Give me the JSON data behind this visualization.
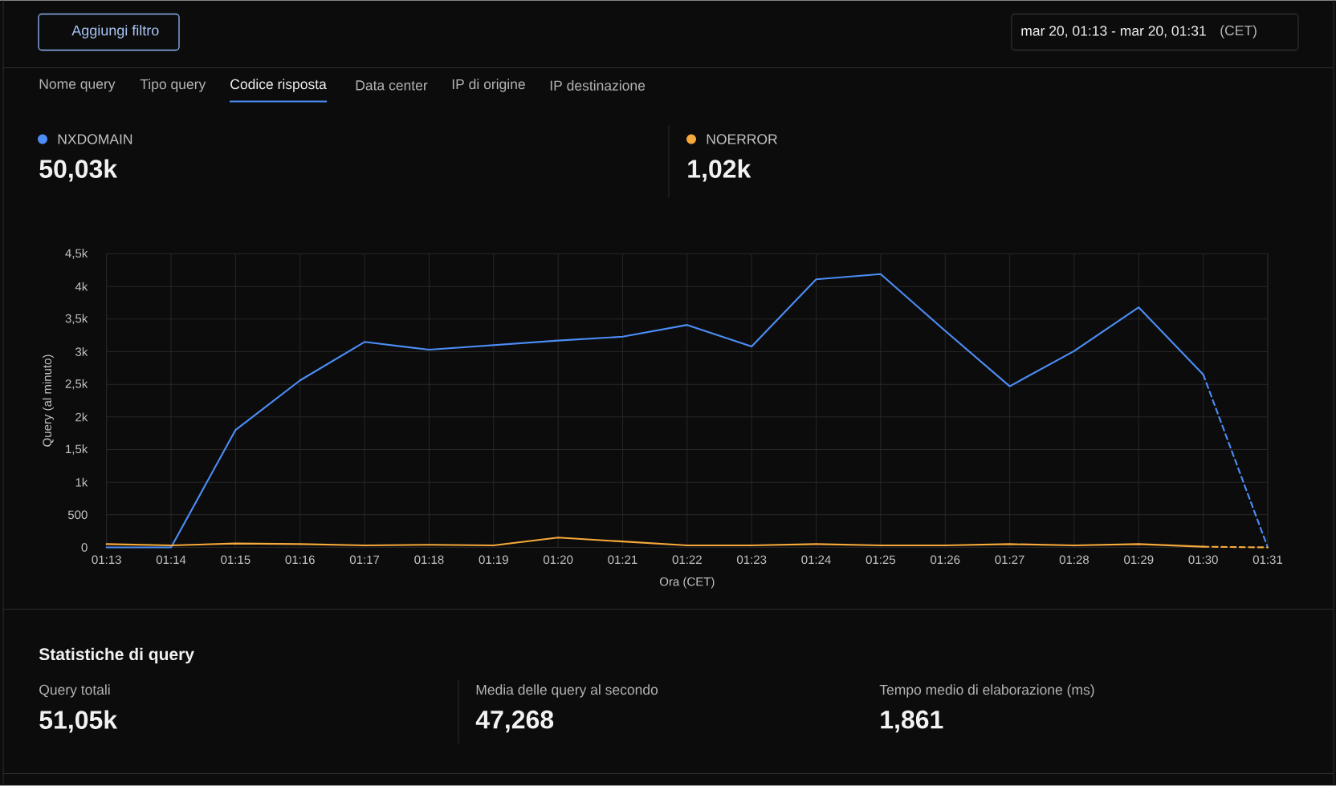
{
  "chart_data": {
    "type": "line",
    "xlabel": "Ora (CET)",
    "ylabel": "Query (al minuto)",
    "categories": [
      "01:13",
      "01:14",
      "01:15",
      "01:16",
      "01:17",
      "01:18",
      "01:19",
      "01:20",
      "01:21",
      "01:22",
      "01:23",
      "01:24",
      "01:25",
      "01:26",
      "01:27",
      "01:28",
      "01:29",
      "01:30",
      "01:31"
    ],
    "series": [
      {
        "name": "NXDOMAIN",
        "color": "#4c8df6",
        "line_style": "solid",
        "values": [
          0,
          0,
          1800,
          2560,
          3150,
          3030,
          3100,
          3170,
          3230,
          3410,
          3080,
          4110,
          4190,
          3320,
          2470,
          3010,
          3680,
          2650,
          null
        ]
      },
      {
        "name": "NOERROR",
        "color": "#f6a93b",
        "line_style": "solid",
        "values": [
          50,
          30,
          60,
          50,
          30,
          40,
          30,
          150,
          90,
          30,
          30,
          50,
          30,
          30,
          50,
          30,
          50,
          10,
          null
        ]
      },
      {
        "color": "#4c8df6",
        "line_style": "dashed",
        "x": [
          "01:30",
          "01:31"
        ],
        "values": [
          2650,
          0
        ]
      },
      {
        "color": "#f6a93b",
        "line_style": "dashed",
        "x": [
          "01:30",
          "01:31"
        ],
        "values": [
          10,
          0
        ]
      }
    ],
    "ylim": [
      0,
      4500
    ],
    "yticks": [
      0,
      500,
      {
        "value": 1000,
        "label": "1k"
      },
      {
        "value": 1500,
        "label": "1,5k"
      },
      {
        "value": 2000,
        "label": "2k"
      },
      {
        "value": 2500,
        "label": "2,5k"
      },
      {
        "value": 3000,
        "label": "3k"
      },
      {
        "value": 3500,
        "label": "3,5k"
      },
      {
        "value": 4000,
        "label": "4k"
      },
      {
        "value": 4500,
        "label": "4,5k"
      }
    ],
    "grid": true,
    "legend": "top",
    "annotations": [
      "Aggiungi filtro",
      "mar 20, 01:13 - mar 20, 01:31",
      "(CET)",
      "Nome query",
      "Tipo query",
      "Codice risposta",
      "Data center",
      "IP di origine",
      "IP destinazione",
      "50,03k",
      "1,02k",
      "Statistiche di query",
      "Query totali",
      "51,05k",
      "Media delle query al secondo",
      "47,268",
      "Tempo medio di elaborazione (ms)",
      "1,861"
    ]
  }
}
